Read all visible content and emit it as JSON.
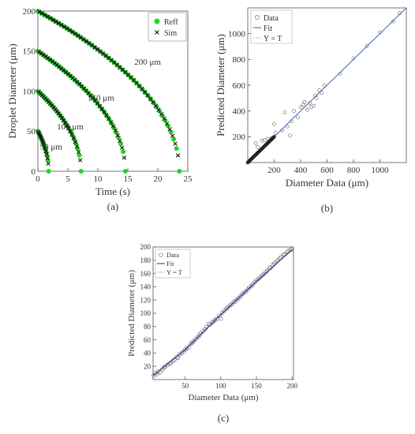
{
  "chart_data": [
    {
      "id": "a",
      "type": "scatter",
      "panel_label": "(a)",
      "xlabel": "Time (s)",
      "ylabel": "Droplet Diameter (μm)",
      "xlim": [
        0,
        25
      ],
      "ylim": [
        0,
        200
      ],
      "xticks": [
        0,
        5,
        10,
        15,
        20,
        25
      ],
      "yticks": [
        0,
        50,
        100,
        150,
        200
      ],
      "legend": {
        "position": "top-right",
        "entries": [
          "Reff",
          "Sim"
        ]
      },
      "annotations": [
        {
          "text": "200 μm",
          "x": 18.3,
          "y": 133
        },
        {
          "text": "150 μm",
          "x": 10.5,
          "y": 88
        },
        {
          "text": "100 μm",
          "x": 5.4,
          "y": 52
        },
        {
          "text": "50 μm",
          "x": 2.2,
          "y": 27
        }
      ],
      "series": [
        {
          "name": "Reff",
          "color": "#22d41f",
          "initial_diameters": [
            50,
            100,
            150,
            200
          ],
          "end_times": [
            1.8,
            7.2,
            14.6,
            23.6
          ]
        },
        {
          "name": "Sim",
          "color": "#111111",
          "initial_diameters": [
            50,
            100,
            150,
            200
          ],
          "end_times": [
            1.8,
            7.2,
            14.6,
            23.6
          ]
        }
      ]
    },
    {
      "id": "b",
      "type": "scatter",
      "panel_label": "(b)",
      "xlabel": "Diameter Data (μm)",
      "ylabel": "Predicted Diameter (μm)",
      "xlim": [
        0,
        1200
      ],
      "ylim": [
        0,
        1200
      ],
      "xticks": [
        200,
        400,
        600,
        800,
        1000
      ],
      "yticks": [
        200,
        400,
        600,
        800,
        1000
      ],
      "legend": {
        "position": "top-left",
        "entries": [
          "Data",
          "Fit",
          "Y = T"
        ]
      },
      "fit_line": [
        [
          0,
          0
        ],
        [
          1200,
          1200
        ]
      ],
      "scatter_points": [
        [
          60,
          150
        ],
        [
          75,
          120
        ],
        [
          110,
          170
        ],
        [
          130,
          175
        ],
        [
          150,
          185
        ],
        [
          180,
          190
        ],
        [
          200,
          300
        ],
        [
          210,
          230
        ],
        [
          260,
          250
        ],
        [
          280,
          390
        ],
        [
          300,
          280
        ],
        [
          320,
          210
        ],
        [
          330,
          320
        ],
        [
          350,
          400
        ],
        [
          380,
          350
        ],
        [
          400,
          430
        ],
        [
          420,
          450
        ],
        [
          430,
          470
        ],
        [
          450,
          410
        ],
        [
          470,
          460
        ],
        [
          480,
          430
        ],
        [
          500,
          440
        ],
        [
          510,
          520
        ],
        [
          520,
          500
        ],
        [
          540,
          560
        ],
        [
          560,
          540
        ],
        [
          580,
          600
        ],
        [
          700,
          690
        ],
        [
          800,
          810
        ],
        [
          900,
          905
        ],
        [
          1000,
          1010
        ],
        [
          1100,
          1095
        ],
        [
          1150,
          1160
        ]
      ],
      "dense_segment": {
        "from": 0,
        "to": 200,
        "count": 60
      }
    },
    {
      "id": "c",
      "type": "scatter",
      "panel_label": "(c)",
      "xlabel": "Diameter Data (μm)",
      "ylabel": "Predicted Diameter (μm)",
      "xlim": [
        5,
        202
      ],
      "ylim": [
        0,
        200
      ],
      "xticks": [
        50,
        100,
        150,
        200
      ],
      "yticks": [
        20,
        40,
        60,
        80,
        100,
        120,
        140,
        160,
        180,
        200
      ],
      "legend": {
        "position": "top-left",
        "entries": [
          "Data",
          "Fit",
          "Y = T"
        ]
      },
      "fit_line": [
        [
          5,
          6
        ],
        [
          50,
          45
        ],
        [
          100,
          98
        ],
        [
          150,
          148
        ],
        [
          200,
          196
        ]
      ],
      "scatter_points": [
        [
          6,
          6
        ],
        [
          8,
          10
        ],
        [
          10,
          8
        ],
        [
          12,
          12
        ],
        [
          15,
          11
        ],
        [
          18,
          15
        ],
        [
          20,
          18
        ],
        [
          22,
          20
        ],
        [
          25,
          22
        ],
        [
          28,
          24
        ],
        [
          30,
          25
        ],
        [
          33,
          28
        ],
        [
          35,
          30
        ],
        [
          38,
          34
        ],
        [
          40,
          33
        ],
        [
          42,
          38
        ],
        [
          45,
          40
        ],
        [
          48,
          42
        ],
        [
          50,
          45
        ],
        [
          52,
          47
        ],
        [
          55,
          49
        ],
        [
          58,
          54
        ],
        [
          60,
          56
        ],
        [
          62,
          58
        ],
        [
          65,
          61
        ],
        [
          68,
          64
        ],
        [
          70,
          67
        ],
        [
          72,
          70
        ],
        [
          75,
          73
        ],
        [
          78,
          76
        ],
        [
          80,
          79
        ],
        [
          83,
          84
        ],
        [
          85,
          83
        ],
        [
          88,
          86
        ],
        [
          90,
          88
        ],
        [
          92,
          90
        ],
        [
          95,
          92
        ],
        [
          98,
          96
        ],
        [
          100,
          92
        ],
        [
          102,
          101
        ],
        [
          105,
          104
        ],
        [
          108,
          107
        ],
        [
          110,
          109
        ],
        [
          113,
          112
        ],
        [
          115,
          113
        ],
        [
          118,
          117
        ],
        [
          120,
          118
        ],
        [
          123,
          121
        ],
        [
          125,
          123
        ],
        [
          128,
          126
        ],
        [
          130,
          129
        ],
        [
          133,
          131
        ],
        [
          135,
          133
        ],
        [
          138,
          136
        ],
        [
          140,
          139
        ],
        [
          143,
          141
        ],
        [
          145,
          144
        ],
        [
          148,
          147
        ],
        [
          150,
          150
        ],
        [
          153,
          152
        ],
        [
          155,
          154
        ],
        [
          158,
          157
        ],
        [
          160,
          159
        ],
        [
          163,
          162
        ],
        [
          165,
          164
        ],
        [
          168,
          168
        ],
        [
          170,
          169
        ],
        [
          173,
          173
        ],
        [
          175,
          175
        ],
        [
          178,
          178
        ],
        [
          180,
          180
        ],
        [
          183,
          183
        ],
        [
          185,
          185
        ],
        [
          188,
          188
        ],
        [
          190,
          189
        ],
        [
          193,
          192
        ],
        [
          195,
          194
        ],
        [
          198,
          196
        ],
        [
          200,
          196
        ]
      ]
    }
  ]
}
